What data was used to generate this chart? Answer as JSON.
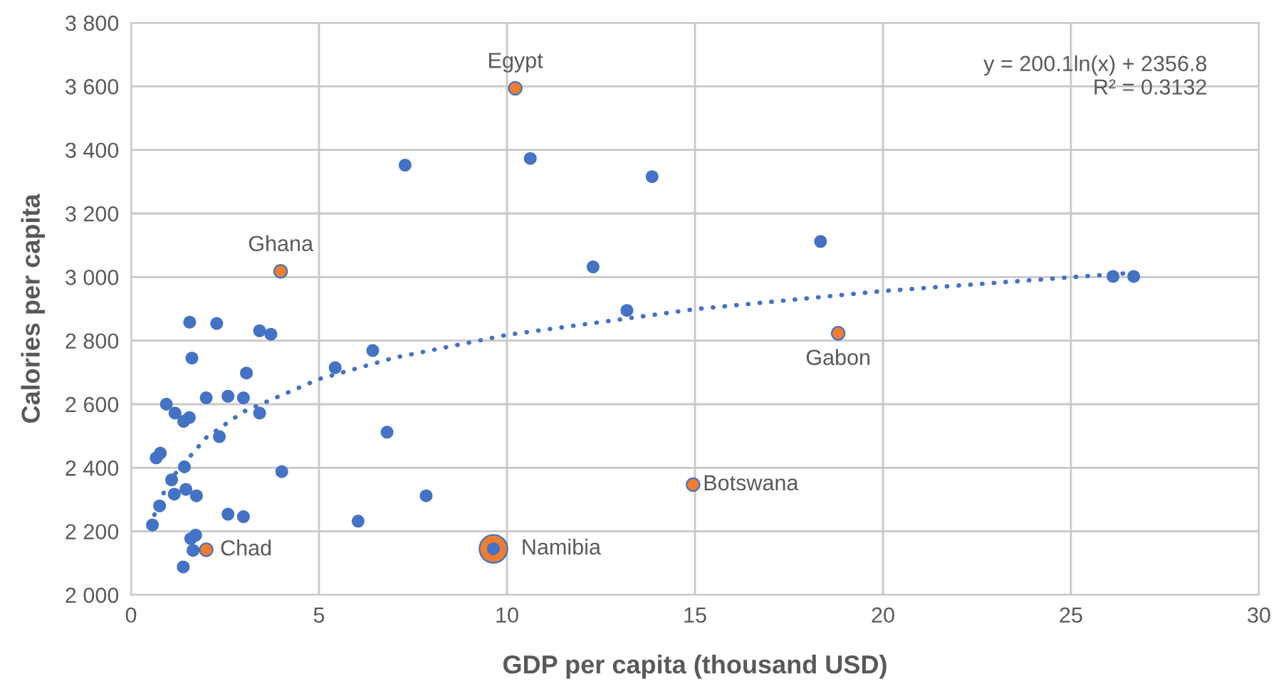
{
  "chart_data": {
    "type": "scatter",
    "xlabel": "GDP per capita (thousand USD)",
    "ylabel": "Calories per capita",
    "xlim": [
      0,
      30
    ],
    "xticks": [
      0,
      5,
      10,
      15,
      20,
      25,
      30
    ],
    "ylim": [
      2000,
      3800
    ],
    "yticks": [
      {
        "value": 2000,
        "label": "2 000"
      },
      {
        "value": 2200,
        "label": "2 200"
      },
      {
        "value": 2400,
        "label": "2 400"
      },
      {
        "value": 2600,
        "label": "2 600"
      },
      {
        "value": 2800,
        "label": "2 800"
      },
      {
        "value": 3000,
        "label": "3 000"
      },
      {
        "value": 3200,
        "label": "3 200"
      },
      {
        "value": 3400,
        "label": "3 400"
      },
      {
        "value": 3600,
        "label": "3 600"
      },
      {
        "value": 3800,
        "label": "3 800"
      }
    ],
    "grid": true,
    "marker": "circle",
    "series": [
      {
        "color": "#4472c4",
        "x": [
          1.56,
          2.28,
          3.42,
          3.72,
          1.62,
          3.07,
          5.43,
          6.43,
          0.94,
          1.17,
          1.4,
          1.55,
          2.0,
          2.58,
          2.99,
          3.42,
          2.35,
          6.81,
          0.67,
          0.78,
          1.42,
          1.08,
          1.46,
          1.74,
          1.15,
          4.01,
          7.85,
          0.76,
          0.57,
          2.58,
          2.99,
          6.04,
          1.59,
          1.72,
          1.65,
          1.39,
          7.29,
          10.62,
          13.86,
          18.34,
          12.29,
          13.19,
          26.12,
          26.67,
          9.64
        ],
        "values": [
          2858,
          2854,
          2831,
          2820,
          2745,
          2698,
          2715,
          2769,
          2600,
          2572,
          2546,
          2558,
          2620,
          2625,
          2620,
          2572,
          2498,
          2512,
          2431,
          2446,
          2403,
          2362,
          2332,
          2312,
          2317,
          2388,
          2312,
          2280,
          2220,
          2254,
          2246,
          2232,
          2177,
          2188,
          2140,
          2088,
          3352,
          3373,
          3316,
          3112,
          3032,
          2895,
          3002,
          3002,
          2145
        ]
      },
      {
        "type": "bubble",
        "color": "#ed7d31",
        "x": [
          10.22,
          3.98,
          18.81,
          14.95,
          2.0,
          9.64
        ],
        "values": [
          3594,
          3018,
          2823,
          2347,
          2142,
          2145
        ],
        "sizes": [
          0.22,
          0.22,
          0.22,
          0.22,
          0.22,
          1
        ]
      },
      {
        "type": "line",
        "color": "#4472c4",
        "line_style": "dotted",
        "marker": "none",
        "x": [
          0.5,
          1,
          2,
          3,
          5,
          7,
          10,
          15,
          20,
          26.7
        ],
        "values": [
          2218,
          2357,
          2495,
          2577,
          2679,
          2746,
          2818,
          2899,
          2956,
          3014
        ]
      }
    ],
    "annotations": [
      {
        "text": "Egypt",
        "x": 10.22,
        "y": 3594
      },
      {
        "text": "Ghana",
        "x": 3.98,
        "y": 3018
      },
      {
        "text": "Gabon",
        "x": 18.81,
        "y": 2823
      },
      {
        "text": "Botswana",
        "x": 14.95,
        "y": 2347
      },
      {
        "text": "Chad",
        "x": 2.0,
        "y": 2142
      },
      {
        "text": "Namibia",
        "x": 9.64,
        "y": 2145
      },
      "y = 200.1ln(x) + 2356.8\nR² = 0.3132"
    ]
  }
}
